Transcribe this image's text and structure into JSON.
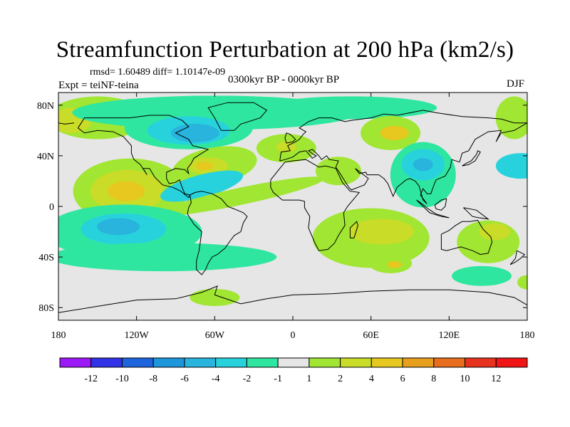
{
  "title": "Streamfunction Perturbation at 200 hPa (km2/s)",
  "stats": "rmsd= 1.60489 diff= 1.10147e-09",
  "experiment": "Expt = teiNF-teina",
  "period": "0300kyr BP - 0000kyr BP",
  "season": "DJF",
  "axes": {
    "x_ticks": [
      "180",
      "120W",
      "60W",
      "0",
      "60E",
      "120E",
      "180"
    ],
    "y_ticks": [
      "80N",
      "40N",
      "0",
      "40S",
      "80S"
    ],
    "x_values": [
      -180,
      -120,
      -60,
      0,
      60,
      120,
      180
    ],
    "y_values": [
      80,
      40,
      0,
      -40,
      -80
    ],
    "lon_range": [
      -180,
      180
    ],
    "lat_range": [
      -90,
      90
    ]
  },
  "colorbar": {
    "labels": [
      "-12",
      "-10",
      "-8",
      "-6",
      "-4",
      "-2",
      "-1",
      "1",
      "2",
      "4",
      "6",
      "8",
      "10",
      "12"
    ],
    "colors": [
      "#9b19f5",
      "#3232e6",
      "#1e64dc",
      "#1e96dc",
      "#28b4dc",
      "#28d2dc",
      "#2fe6a0",
      "#e6e6e6",
      "#a0e632",
      "#c8dc28",
      "#e6c81e",
      "#e6a01e",
      "#e66e1e",
      "#e6321e",
      "#f01414"
    ]
  },
  "field_colors": {
    "neutral": "#e6e6e6",
    "neg1": "#2fe6a0",
    "neg2": "#28d2dc",
    "neg3": "#28b4dc",
    "pos1": "#a0e632",
    "pos2": "#c8dc28",
    "pos3": "#e6c81e",
    "pos4": "#e6a01e"
  }
}
